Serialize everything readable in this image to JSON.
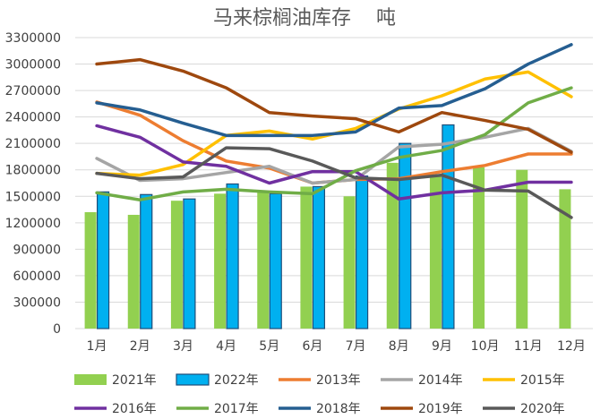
{
  "chart_data": {
    "type": "bar",
    "title": "马来棕榈油库存    吨",
    "categories": [
      "1月",
      "2月",
      "3月",
      "4月",
      "5月",
      "6月",
      "7月",
      "8月",
      "9月",
      "10月",
      "11月",
      "12月"
    ],
    "ylim": [
      0,
      3300000
    ],
    "yticks": [
      0,
      300000,
      600000,
      900000,
      1200000,
      1500000,
      1800000,
      2100000,
      2400000,
      2700000,
      3000000,
      3300000
    ],
    "grid": true,
    "legend_position": "bottom",
    "bar_series": [
      {
        "name": "2021年",
        "color": "#92d050",
        "values": [
          1320000,
          1290000,
          1450000,
          1530000,
          1560000,
          1610000,
          1500000,
          1880000,
          1730000,
          1830000,
          1800000,
          1580000
        ]
      },
      {
        "name": "2022年",
        "color": "#00b0f0",
        "border": "#1f4e79",
        "values": [
          1550000,
          1520000,
          1470000,
          1640000,
          1530000,
          1610000,
          1730000,
          2100000,
          2310000,
          null,
          null,
          null
        ]
      }
    ],
    "line_series": [
      {
        "name": "2013年",
        "color": "#ed7d31",
        "values": [
          2570000,
          2420000,
          2130000,
          1900000,
          1820000,
          1650000,
          1690000,
          1700000,
          1780000,
          1850000,
          1980000,
          1980000
        ]
      },
      {
        "name": "2014年",
        "color": "#a5a5a5",
        "values": [
          1930000,
          1680000,
          1700000,
          1770000,
          1840000,
          1650000,
          1690000,
          2060000,
          2090000,
          2170000,
          2270000,
          2010000
        ]
      },
      {
        "name": "2015年",
        "color": "#ffc000",
        "values": [
          1760000,
          1740000,
          1860000,
          2190000,
          2240000,
          2150000,
          2270000,
          2490000,
          2640000,
          2830000,
          2910000,
          2630000
        ]
      },
      {
        "name": "2016年",
        "color": "#7030a0",
        "values": [
          2300000,
          2170000,
          1890000,
          1840000,
          1650000,
          1780000,
          1780000,
          1470000,
          1540000,
          1570000,
          1660000,
          1660000
        ]
      },
      {
        "name": "2017年",
        "color": "#70ad47",
        "values": [
          1540000,
          1460000,
          1550000,
          1580000,
          1550000,
          1530000,
          1790000,
          1940000,
          2020000,
          2200000,
          2560000,
          2730000
        ]
      },
      {
        "name": "2018年",
        "color": "#255e91",
        "values": [
          2560000,
          2480000,
          2330000,
          2190000,
          2190000,
          2190000,
          2230000,
          2500000,
          2530000,
          2720000,
          3000000,
          3220000
        ]
      },
      {
        "name": "2019年",
        "color": "#9e480e",
        "values": [
          3000000,
          3050000,
          2920000,
          2730000,
          2450000,
          2410000,
          2380000,
          2230000,
          2450000,
          2360000,
          2260000,
          2000000
        ]
      },
      {
        "name": "2020年",
        "color": "#595959",
        "values": [
          1760000,
          1700000,
          1720000,
          2050000,
          2040000,
          1900000,
          1710000,
          1690000,
          1740000,
          1570000,
          1560000,
          1260000
        ]
      }
    ]
  }
}
